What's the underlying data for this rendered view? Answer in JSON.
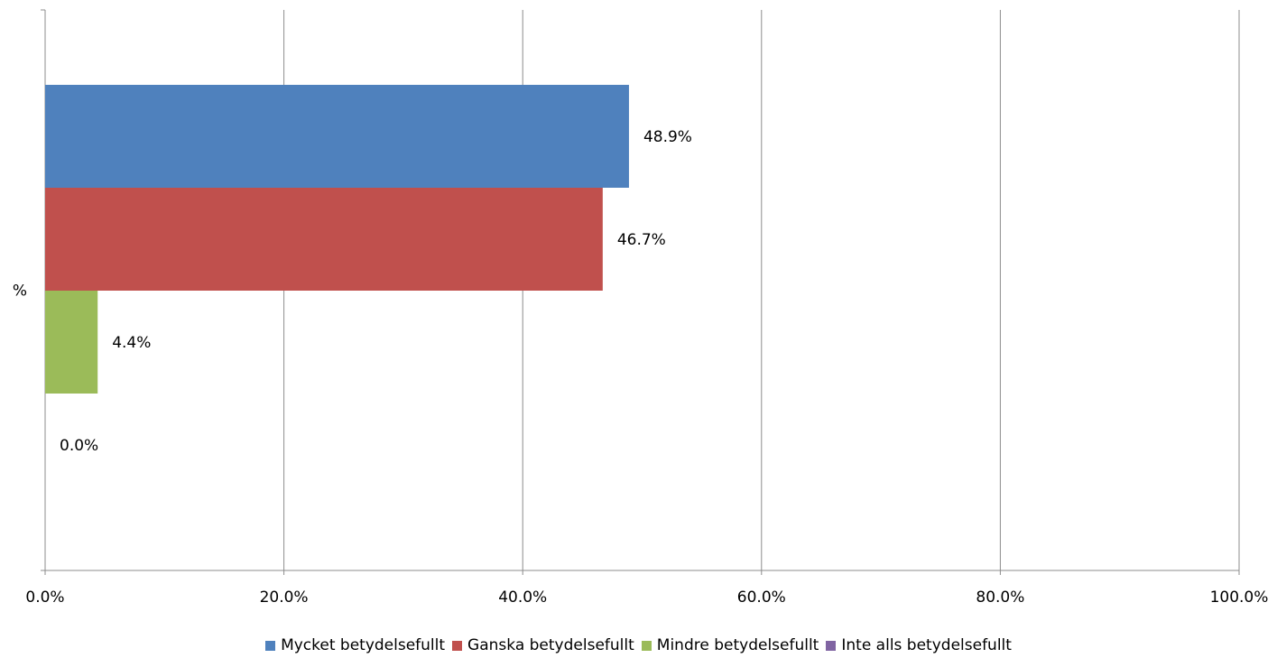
{
  "chart_data": {
    "type": "bar",
    "orientation": "horizontal",
    "categories": [
      "%"
    ],
    "series": [
      {
        "name": "Mycket betydelsefullt",
        "values": [
          48.9
        ],
        "color": "#4F81BD"
      },
      {
        "name": "Ganska betydelsefullt",
        "values": [
          46.7
        ],
        "color": "#C0504D"
      },
      {
        "name": "Mindre betydelsefullt",
        "values": [
          4.4
        ],
        "color": "#9BBB59"
      },
      {
        "name": "Inte alls betydelsefullt",
        "values": [
          0.0
        ],
        "color": "#8064A2"
      }
    ],
    "data_labels": [
      "48.9%",
      "46.7%",
      "4.4%",
      "0.0%"
    ],
    "xlim": [
      0,
      100
    ],
    "xticks": [
      0,
      20,
      40,
      60,
      80,
      100
    ],
    "xtick_labels": [
      "0.0%",
      "20.0%",
      "40.0%",
      "60.0%",
      "80.0%",
      "100.0%"
    ],
    "title": "",
    "xlabel": "",
    "ylabel": "",
    "grid": true,
    "legend_position": "bottom"
  }
}
